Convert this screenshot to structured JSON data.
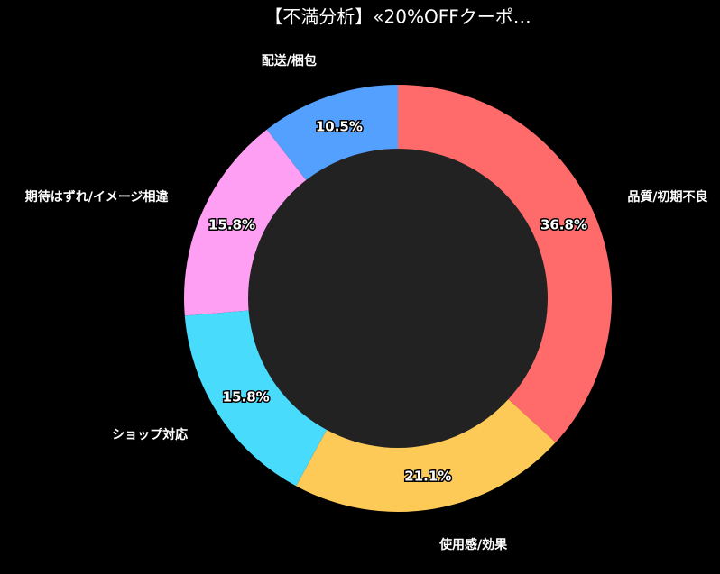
{
  "chart_data": {
    "type": "donut",
    "title": "【不満分析】«20%OFFクーポ…",
    "categories": [
      "品質/初期不良",
      "使用感/効果",
      "ショップ対応",
      "期待はずれ/イメージ相違",
      "配送/梱包"
    ],
    "values": [
      36.8,
      21.1,
      15.8,
      15.8,
      10.5
    ],
    "value_labels": [
      "36.8%",
      "21.1%",
      "15.8%",
      "15.8%",
      "10.5%"
    ],
    "colors": [
      "#ff6b6b",
      "#feca57",
      "#48dbfb",
      "#ff9ff3",
      "#54a0ff"
    ]
  }
}
